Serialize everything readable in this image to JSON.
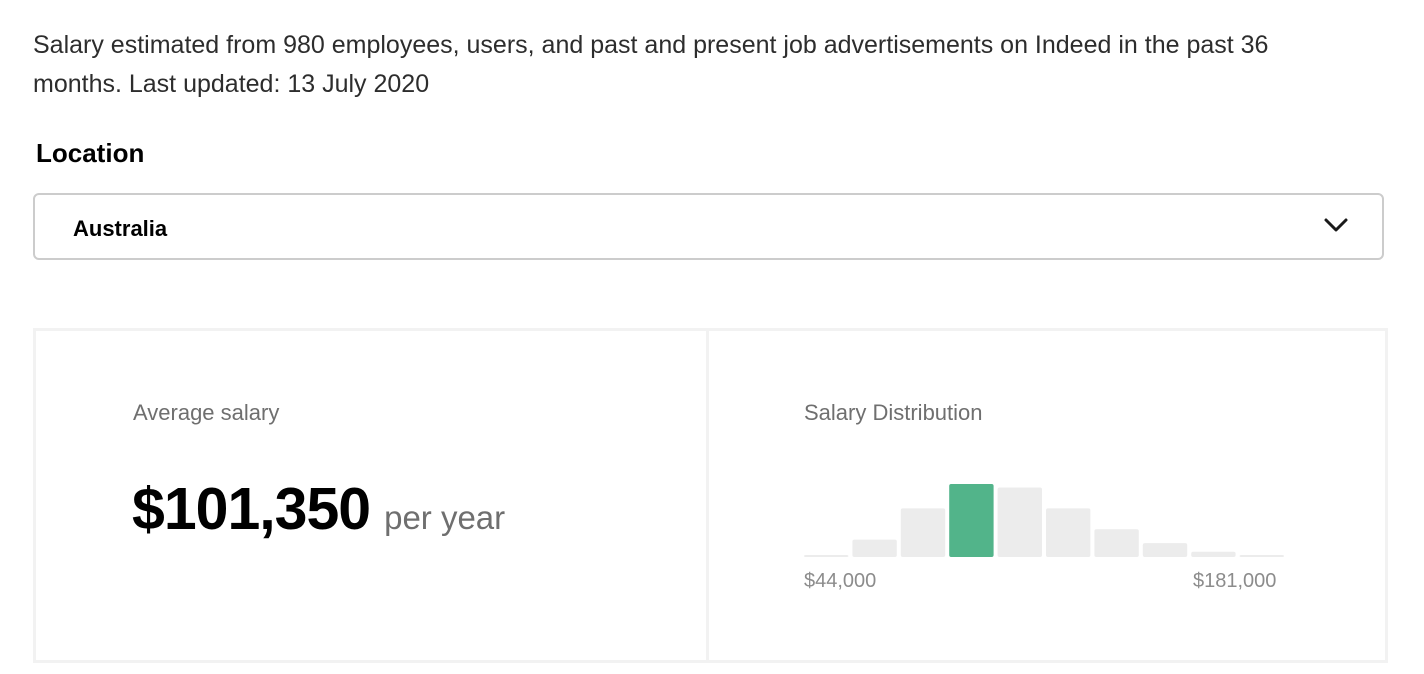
{
  "description": "Salary estimated from 980 employees, users, and past and present job advertisements on Indeed in the past 36 months. Last updated: 13 July 2020",
  "location": {
    "label": "Location",
    "selected": "Australia",
    "icon": "chevron-down-icon"
  },
  "average": {
    "title": "Average salary",
    "amount": "$101,350",
    "period": "per year"
  },
  "distribution": {
    "title": "Salary Distribution",
    "min_label": "$44,000",
    "max_label": "$181,000"
  },
  "chart_data": {
    "type": "bar",
    "title": "Salary Distribution",
    "x_range": [
      "$44,000",
      "$181,000"
    ],
    "bins": 10,
    "values": [
      1,
      10,
      28,
      42,
      40,
      28,
      16,
      8,
      3,
      1
    ],
    "highlight_index": 3,
    "colors": {
      "default": "#ececec",
      "highlight": "#52b48a"
    }
  }
}
